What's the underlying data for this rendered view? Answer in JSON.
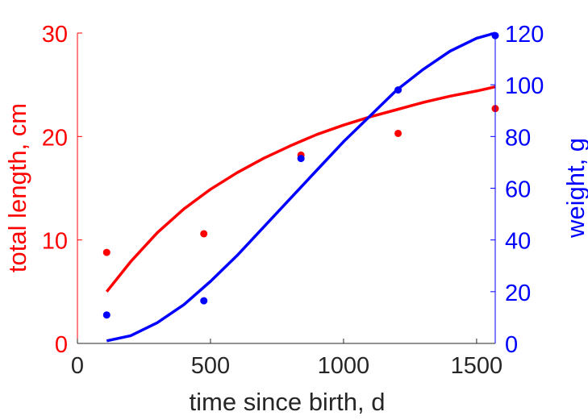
{
  "chart_data": {
    "type": "line",
    "xlabel": "time since birth, d",
    "xlim": [
      0,
      1570
    ],
    "xticks": [
      0,
      500,
      1000,
      1500
    ],
    "left_axis": {
      "label": "total length, cm",
      "color": "#ff0000",
      "lim": [
        0,
        30
      ],
      "ticks": [
        0,
        10,
        20,
        30
      ]
    },
    "right_axis": {
      "label": "weight, g",
      "color": "#0000ff",
      "lim": [
        0,
        120
      ],
      "ticks": [
        0,
        20,
        40,
        60,
        80,
        100,
        120
      ]
    },
    "series": [
      {
        "axis": "left",
        "color": "#ff0000",
        "points": [
          [
            110,
            8.8
          ],
          [
            475,
            10.6
          ],
          [
            840,
            18.2
          ],
          [
            1205,
            20.3
          ],
          [
            1570,
            22.7
          ]
        ],
        "curve": [
          [
            110,
            5.0
          ],
          [
            200,
            7.9
          ],
          [
            300,
            10.7
          ],
          [
            400,
            13.0
          ],
          [
            500,
            14.9
          ],
          [
            600,
            16.5
          ],
          [
            700,
            17.9
          ],
          [
            800,
            19.1
          ],
          [
            900,
            20.2
          ],
          [
            1000,
            21.1
          ],
          [
            1100,
            21.9
          ],
          [
            1200,
            22.6
          ],
          [
            1300,
            23.3
          ],
          [
            1400,
            23.9
          ],
          [
            1500,
            24.4
          ],
          [
            1570,
            24.8
          ]
        ]
      },
      {
        "axis": "right",
        "color": "#0000ff",
        "points": [
          [
            110,
            11
          ],
          [
            475,
            16.5
          ],
          [
            840,
            71.5
          ],
          [
            1205,
            98
          ],
          [
            1570,
            119
          ]
        ],
        "curve": [
          [
            110,
            1
          ],
          [
            200,
            3
          ],
          [
            300,
            8
          ],
          [
            400,
            15
          ],
          [
            500,
            24
          ],
          [
            600,
            34
          ],
          [
            700,
            45
          ],
          [
            800,
            56
          ],
          [
            900,
            67
          ],
          [
            1000,
            78
          ],
          [
            1100,
            88
          ],
          [
            1200,
            98
          ],
          [
            1300,
            106
          ],
          [
            1400,
            113
          ],
          [
            1500,
            118
          ],
          [
            1570,
            120
          ]
        ]
      }
    ]
  }
}
